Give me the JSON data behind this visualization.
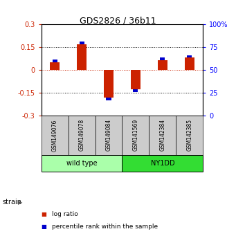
{
  "title": "GDS2826 / 36b11",
  "samples": [
    "GSM149076",
    "GSM149078",
    "GSM149084",
    "GSM141569",
    "GSM142384",
    "GSM142385"
  ],
  "log_ratios": [
    0.05,
    0.17,
    -0.185,
    -0.13,
    0.065,
    0.08
  ],
  "percentile_ranks": [
    55,
    68,
    20,
    30,
    58,
    62
  ],
  "groups": [
    {
      "label": "wild type",
      "indices": [
        0,
        1,
        2
      ],
      "color": "#aaffaa"
    },
    {
      "label": "NY1DD",
      "indices": [
        3,
        4,
        5
      ],
      "color": "#33dd33"
    }
  ],
  "ylim_left": [
    -0.3,
    0.3
  ],
  "ylim_right": [
    0,
    100
  ],
  "yticks_left": [
    -0.3,
    -0.15,
    0,
    0.15,
    0.3
  ],
  "yticks_right": [
    0,
    25,
    50,
    75,
    100
  ],
  "red_color": "#cc2200",
  "blue_color": "#0000cc",
  "background_color": "#ffffff",
  "sample_box_color": "#cccccc",
  "strain_label": "strain",
  "legend_red": "log ratio",
  "legend_blue": "percentile rank within the sample",
  "blue_bar_height": 0.018
}
